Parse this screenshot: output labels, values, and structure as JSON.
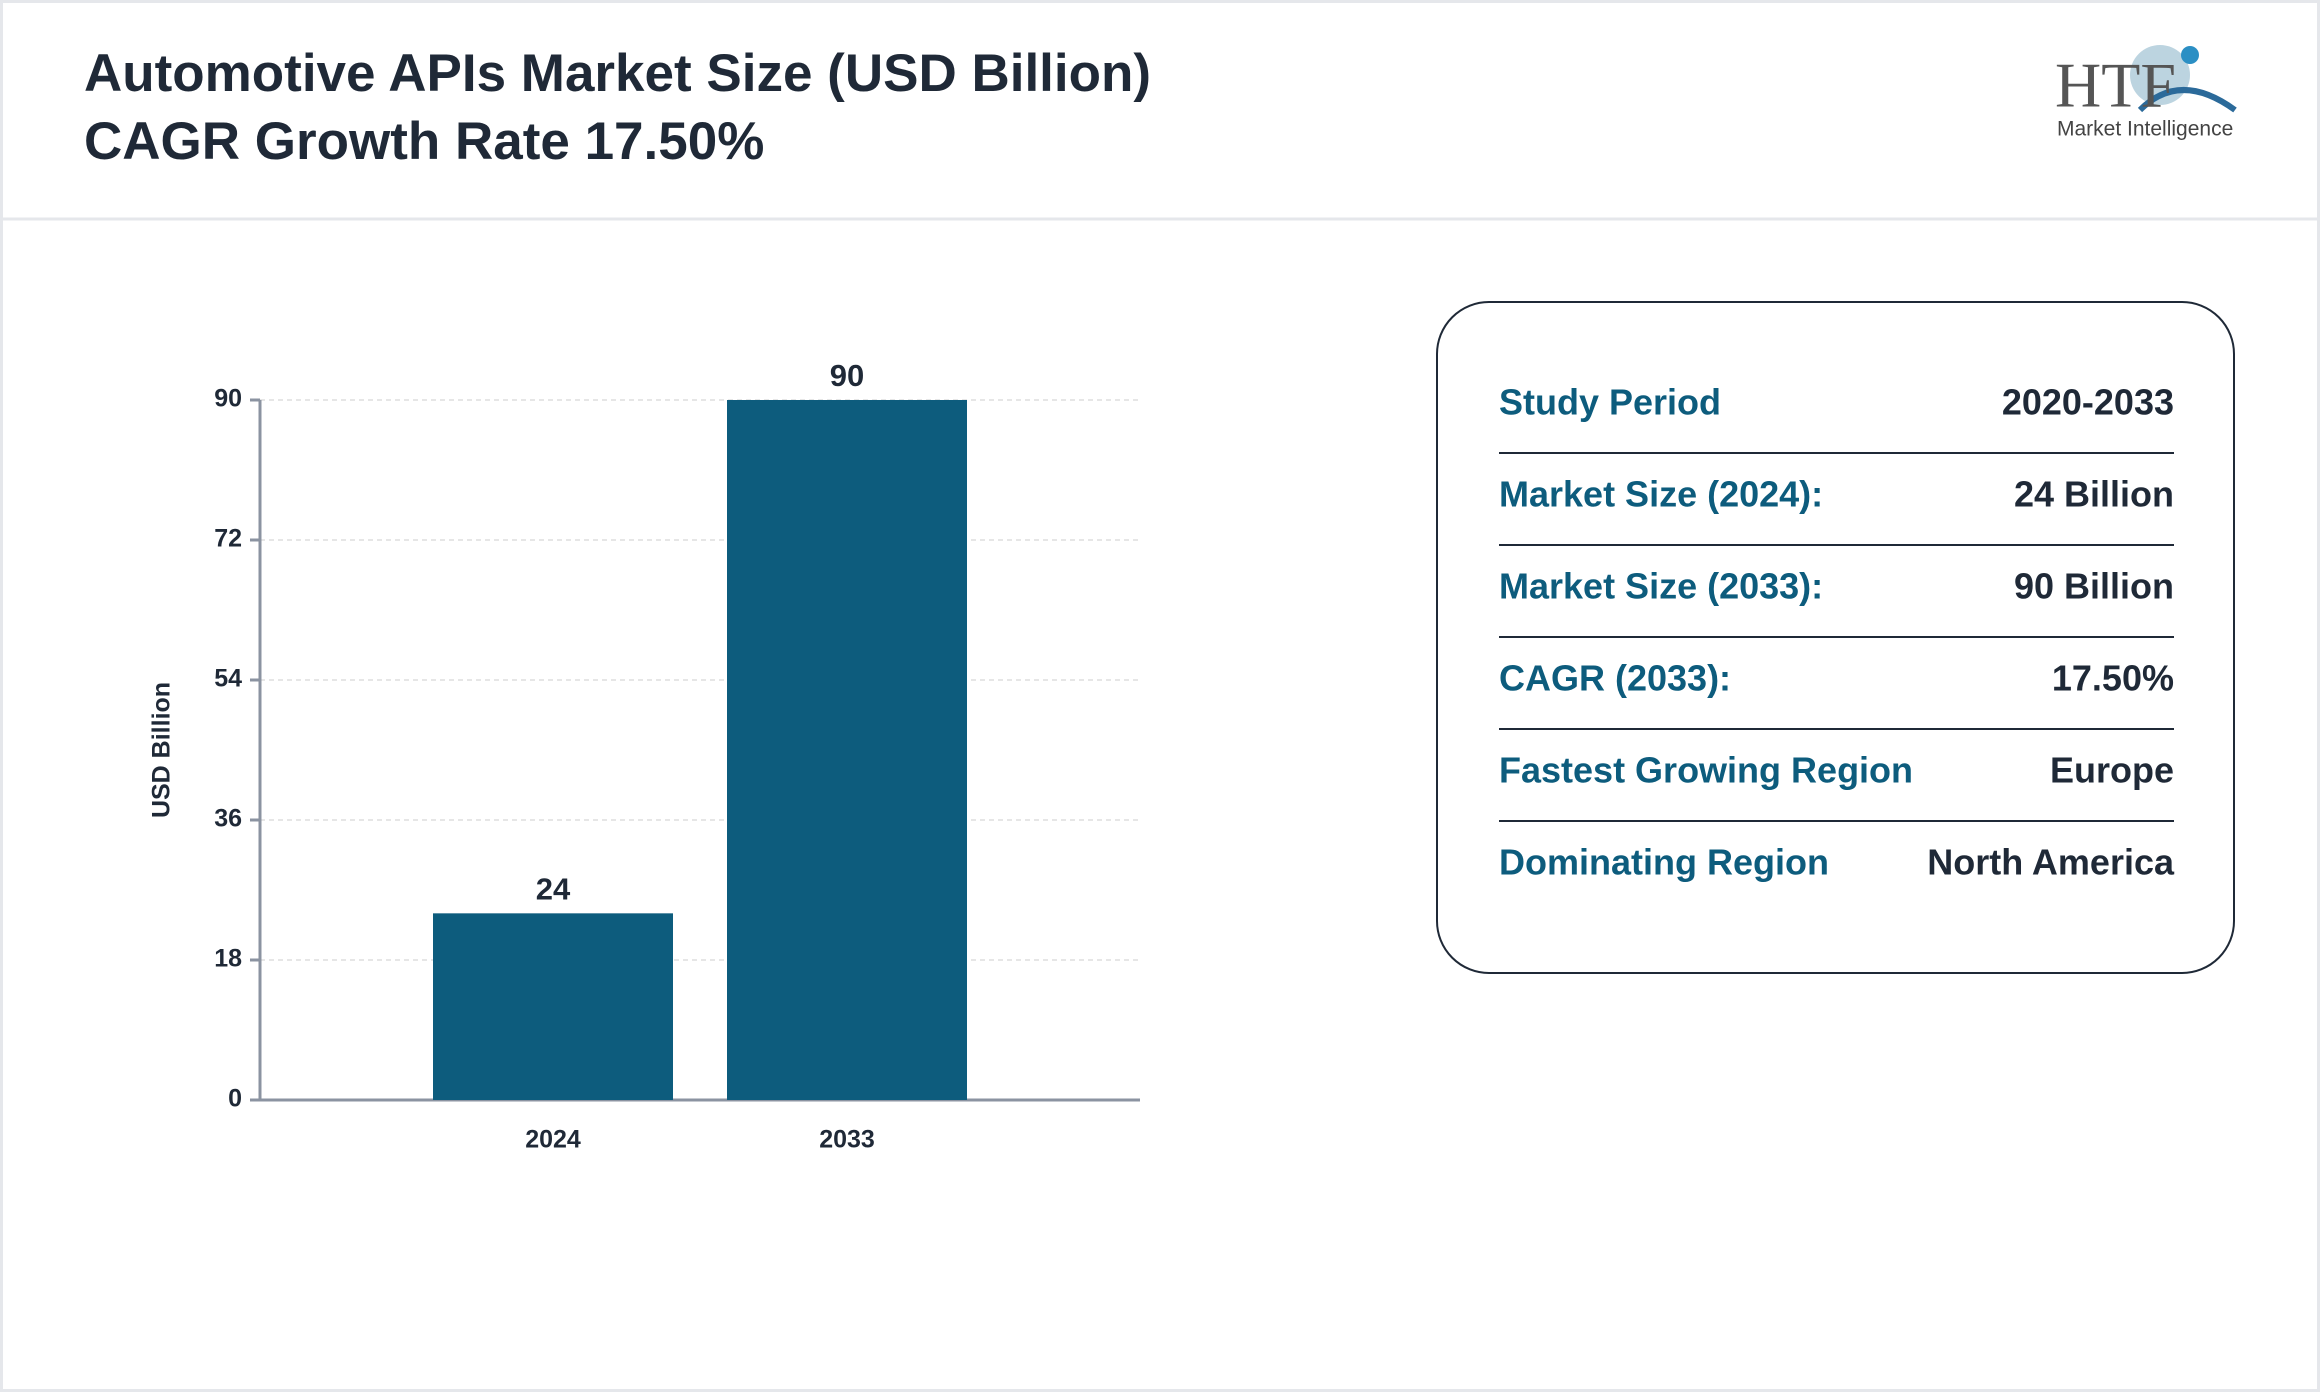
{
  "header": {
    "logo": {
      "mark": "HTF",
      "tagline": "Market Intelligence"
    }
  },
  "chart_data": {
    "type": "bar",
    "title": "Automotive APIs Market Size (USD Billion)",
    "subtitle": "CAGR Growth Rate 17.50%",
    "categories": [
      "2024",
      "2033"
    ],
    "values": [
      24,
      90
    ],
    "color": "#0d5c7d",
    "y_label": "USD Billion",
    "ylim": [
      0,
      90
    ],
    "yticks": [
      0,
      18,
      36,
      54,
      72,
      90
    ],
    "grid": true
  },
  "summary": {
    "rows": [
      [
        "Study Period",
        "2020-2033"
      ],
      [
        "Market Size (2024):",
        "24 Billion"
      ],
      [
        "Market Size (2033):",
        "90 Billion"
      ],
      [
        "CAGR (2033):",
        "17.50%"
      ],
      [
        "Fastest Growing Region",
        "Europe"
      ],
      [
        "Dominating Region",
        "North America"
      ]
    ]
  }
}
